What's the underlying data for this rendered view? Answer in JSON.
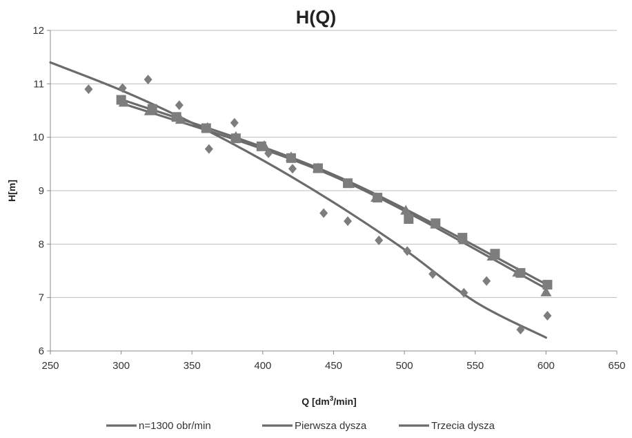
{
  "chart_data": {
    "type": "scatter",
    "title": "H(Q)",
    "xlabel": "Q [dm3/min]",
    "xlabel_base": "Q [dm",
    "xlabel_sup": "3",
    "xlabel_rest": "/min]",
    "ylabel": "H[m]",
    "xlim": [
      250,
      650
    ],
    "ylim": [
      6,
      12
    ],
    "xticks": [
      250,
      300,
      350,
      400,
      450,
      500,
      550,
      600,
      650
    ],
    "yticks": [
      6,
      7,
      8,
      9,
      10,
      11,
      12
    ],
    "grid": "horizontal",
    "legend": "bottom",
    "colors": {
      "series_line": "#6b6b6b",
      "marker": "#7d7d7d",
      "grid": "#bdbdbd",
      "axis": "#888888"
    },
    "series": [
      {
        "name": "n=1300 obr/min",
        "marker": "diamond",
        "points": [
          [
            277,
            10.9
          ],
          [
            301,
            10.92
          ],
          [
            319,
            11.08
          ],
          [
            341,
            10.6
          ],
          [
            362,
            9.78
          ],
          [
            380,
            10.27
          ],
          [
            404,
            9.7
          ],
          [
            421,
            9.41
          ],
          [
            443,
            8.58
          ],
          [
            460,
            8.43
          ],
          [
            482,
            8.07
          ],
          [
            502,
            7.87
          ],
          [
            520,
            7.44
          ],
          [
            542,
            7.09
          ],
          [
            558,
            7.31
          ],
          [
            582,
            6.4
          ],
          [
            601,
            6.66
          ]
        ],
        "trend": [
          [
            250,
            11.4
          ],
          [
            300,
            10.88
          ],
          [
            350,
            10.27
          ],
          [
            400,
            9.57
          ],
          [
            450,
            8.78
          ],
          [
            500,
            7.9
          ],
          [
            550,
            6.92
          ],
          [
            600,
            6.25
          ]
        ]
      },
      {
        "name": "Pierwsza dysza",
        "marker": "square",
        "points": [
          [
            300,
            10.7
          ],
          [
            322,
            10.53
          ],
          [
            339,
            10.38
          ],
          [
            360,
            10.17
          ],
          [
            381,
            9.98
          ],
          [
            399,
            9.83
          ],
          [
            420,
            9.61
          ],
          [
            439,
            9.42
          ],
          [
            460,
            9.14
          ],
          [
            481,
            8.87
          ],
          [
            503,
            8.47
          ],
          [
            522,
            8.39
          ],
          [
            541,
            8.12
          ],
          [
            564,
            7.82
          ],
          [
            582,
            7.46
          ],
          [
            601,
            7.24
          ]
        ],
        "trend": [
          [
            300,
            10.71
          ],
          [
            450,
            9.3
          ],
          [
            600,
            7.25
          ]
        ]
      },
      {
        "name": "Trzecia dysza",
        "marker": "triangle",
        "points": [
          [
            302,
            10.65
          ],
          [
            320,
            10.49
          ],
          [
            342,
            10.33
          ],
          [
            361,
            10.18
          ],
          [
            381,
            10.01
          ],
          [
            401,
            9.84
          ],
          [
            420,
            9.63
          ],
          [
            439,
            9.42
          ],
          [
            461,
            9.13
          ],
          [
            480,
            8.87
          ],
          [
            501,
            8.63
          ],
          [
            522,
            8.37
          ],
          [
            542,
            8.08
          ],
          [
            562,
            7.77
          ],
          [
            580,
            7.47
          ],
          [
            600,
            7.1
          ]
        ],
        "trend": [
          [
            300,
            10.64
          ],
          [
            450,
            9.27
          ],
          [
            600,
            7.17
          ]
        ]
      }
    ]
  }
}
